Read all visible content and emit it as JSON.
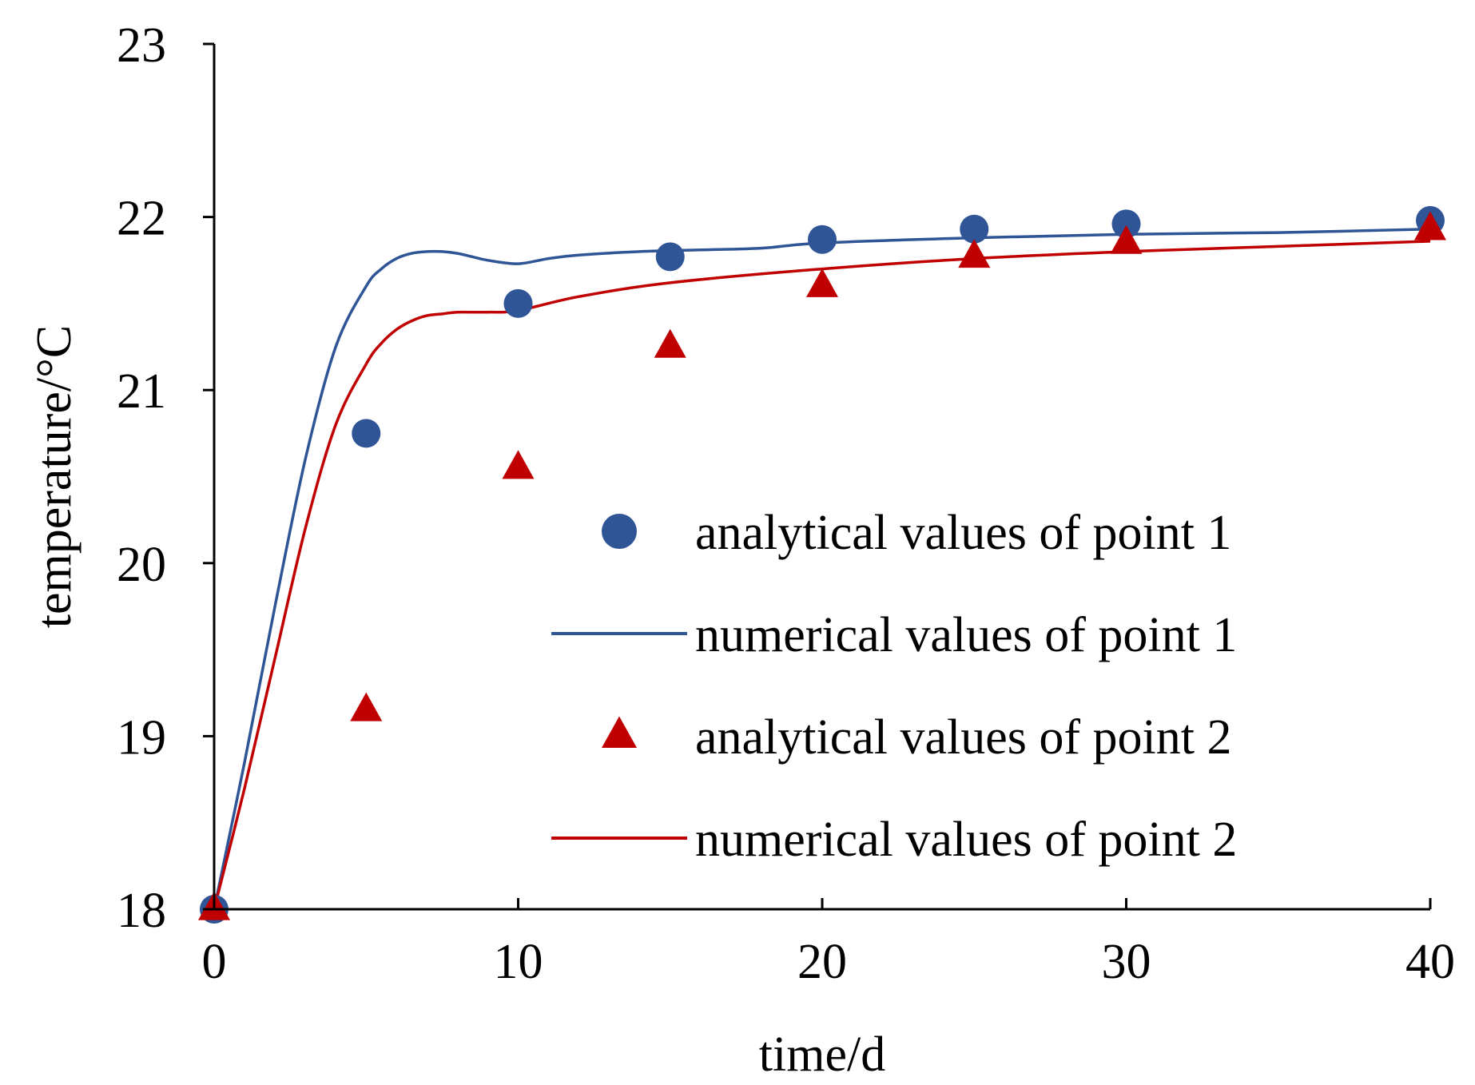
{
  "chart_data": {
    "type": "line",
    "title": "",
    "xlabel": "time/d",
    "ylabel": "temperature/°C",
    "xlim": [
      0,
      40
    ],
    "ylim": [
      18,
      23
    ],
    "x_ticks": [
      0,
      10,
      20,
      30,
      40
    ],
    "y_ticks": [
      18,
      19,
      20,
      21,
      22,
      23
    ],
    "grid": false,
    "legend_position": "center-right",
    "colors": {
      "point1": "#2f5597",
      "point2": "#c00000",
      "axis": "#000000"
    },
    "series": [
      {
        "name": "analytical values of point 1",
        "kind": "scatter",
        "marker": "circle",
        "color": "#2f5597",
        "x": [
          0,
          5,
          10,
          15,
          20,
          25,
          30,
          40
        ],
        "y": [
          18.0,
          20.75,
          21.5,
          21.77,
          21.87,
          21.93,
          21.96,
          21.98
        ]
      },
      {
        "name": "numerical values of point 1",
        "kind": "line",
        "color": "#2f5597",
        "x": [
          0,
          1,
          2,
          3,
          4,
          5,
          5.5,
          6,
          6.5,
          7,
          7.5,
          8,
          8.5,
          9,
          10,
          11,
          12,
          14,
          16,
          18,
          20,
          25,
          30,
          35,
          40
        ],
        "y": [
          18.0,
          18.85,
          19.75,
          20.6,
          21.25,
          21.6,
          21.7,
          21.76,
          21.79,
          21.8,
          21.8,
          21.79,
          21.77,
          21.75,
          21.73,
          21.76,
          21.78,
          21.8,
          21.81,
          21.82,
          21.85,
          21.88,
          21.9,
          21.91,
          21.93
        ]
      },
      {
        "name": "analytical values of point 2",
        "kind": "scatter",
        "marker": "triangle",
        "color": "#c00000",
        "x": [
          0,
          5,
          10,
          15,
          20,
          25,
          30,
          40
        ],
        "y": [
          18.0,
          19.15,
          20.55,
          21.25,
          21.6,
          21.77,
          21.85,
          21.93
        ]
      },
      {
        "name": "numerical values of point 2",
        "kind": "line",
        "color": "#c00000",
        "x": [
          0,
          1,
          2,
          3,
          4,
          5,
          5.5,
          6,
          6.5,
          7,
          7.5,
          8,
          9,
          10,
          12,
          15,
          20,
          25,
          30,
          35,
          40
        ],
        "y": [
          18.0,
          18.7,
          19.45,
          20.2,
          20.8,
          21.15,
          21.27,
          21.35,
          21.4,
          21.43,
          21.44,
          21.45,
          21.45,
          21.46,
          21.54,
          21.62,
          21.7,
          21.76,
          21.8,
          21.83,
          21.86
        ]
      }
    ]
  }
}
